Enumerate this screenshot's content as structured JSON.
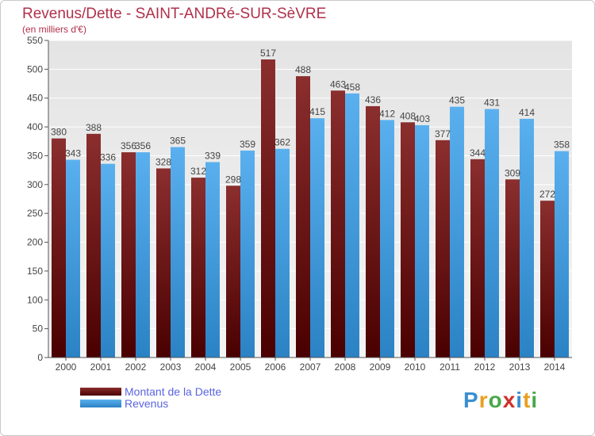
{
  "header": {
    "title": "Revenus/Dette - SAINT-ANDRé-SUR-SèVRE",
    "subtitle": "(en milliers d'€)"
  },
  "legend": {
    "items": [
      {
        "label": "Montant de la Dette",
        "color": "#7a1e1e"
      },
      {
        "label": "Revenus",
        "color": "#4aa3e0"
      }
    ]
  },
  "logo": {
    "letters": [
      "P",
      "r",
      "o",
      "x",
      "i",
      "t",
      "i"
    ],
    "colors": [
      "#3a8fd0",
      "#e8a020",
      "#4aa84a",
      "#d0302a",
      "#3a8fd0",
      "#e8a020",
      "#4aa84a"
    ]
  },
  "chart_data": {
    "type": "bar",
    "categories": [
      "2000",
      "2001",
      "2002",
      "2003",
      "2004",
      "2005",
      "2006",
      "2007",
      "2008",
      "2009",
      "2010",
      "2011",
      "2012",
      "2013",
      "2014"
    ],
    "series": [
      {
        "name": "Montant de la Dette",
        "color": "#7a1e1e",
        "values": [
          380,
          388,
          356,
          328,
          312,
          298,
          517,
          488,
          463,
          436,
          408,
          377,
          344,
          309,
          272
        ]
      },
      {
        "name": "Revenus",
        "color": "#4aa3e0",
        "values": [
          343,
          336,
          356,
          365,
          339,
          359,
          362,
          415,
          458,
          412,
          403,
          435,
          431,
          414,
          358
        ]
      }
    ],
    "yticks": [
      0,
      50,
      100,
      150,
      200,
      250,
      300,
      350,
      400,
      450,
      500,
      550
    ],
    "ylim": [
      0,
      550
    ],
    "grid": true,
    "legend_position": "bottom-left"
  }
}
